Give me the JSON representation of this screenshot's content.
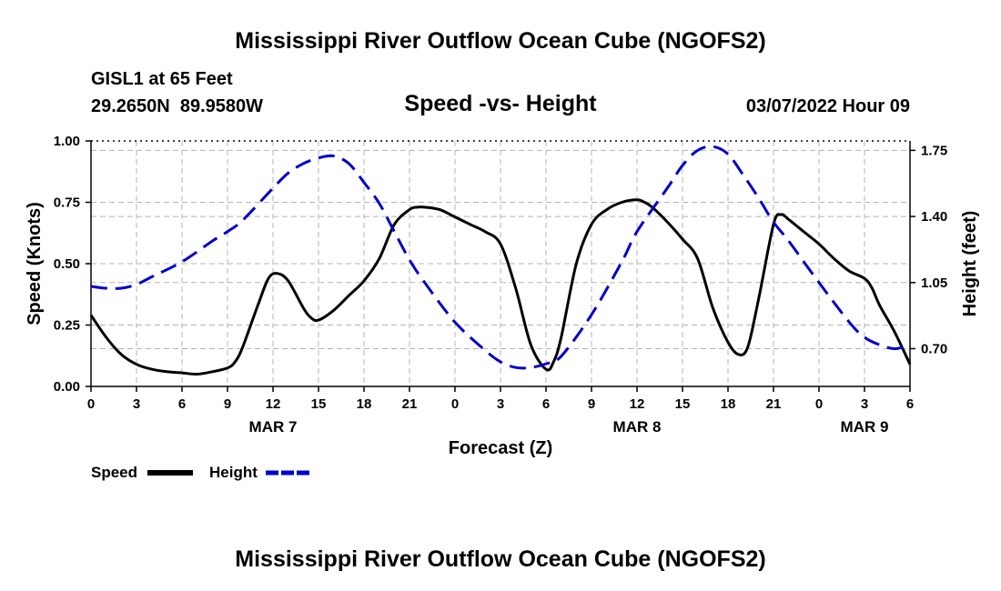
{
  "header": {
    "title": "Mississippi River Outflow Ocean Cube (NGOFS2)",
    "footer_title": "Mississippi River Outflow Ocean Cube (NGOFS2)",
    "station": "GISL1 at 65 Feet",
    "coords": "29.2650N  89.9580W",
    "subtitle": "Speed -vs- Height",
    "datetime": "03/07/2022 Hour 09"
  },
  "legend": {
    "speed_label": "Speed",
    "height_label": "Height"
  },
  "colors": {
    "speed": "#000000",
    "height": "#0000cc",
    "grid": "#b4b4b4"
  },
  "chart_data": {
    "type": "line",
    "title": "Speed -vs- Height",
    "xlabel": "Forecast (Z)",
    "ylabel": "Speed (Knots)",
    "y2label": "Height (feet)",
    "xlim": [
      0,
      54
    ],
    "ylim": [
      0,
      1.0
    ],
    "y2lim": [
      0.5,
      1.8
    ],
    "x_ticks": [
      0,
      3,
      6,
      9,
      12,
      15,
      18,
      21,
      24,
      27,
      30,
      33,
      36,
      39,
      42,
      45,
      48,
      51,
      54
    ],
    "x_tick_labels": [
      "0",
      "3",
      "6",
      "9",
      "12",
      "15",
      "18",
      "21",
      "0",
      "3",
      "6",
      "9",
      "12",
      "15",
      "18",
      "21",
      "0",
      "3",
      "6"
    ],
    "y_ticks": [
      0,
      0.25,
      0.5,
      0.75,
      1.0
    ],
    "y_tick_labels": [
      "0.00",
      "0.25",
      "0.50",
      "0.75",
      "1.00"
    ],
    "y2_ticks": [
      0.7,
      1.05,
      1.4,
      1.75
    ],
    "y2_tick_labels": [
      "0.70",
      "1.05",
      "1.40",
      "1.75"
    ],
    "date_labels": [
      {
        "x": 12,
        "label": "MAR 7"
      },
      {
        "x": 36,
        "label": "MAR 8"
      },
      {
        "x": 51,
        "label": "MAR 9"
      }
    ],
    "series": [
      {
        "name": "Speed",
        "axis": "left",
        "style": "solid",
        "x": [
          0,
          1,
          2,
          3,
          4,
          5,
          6,
          7,
          8,
          9,
          9.5,
          10,
          11,
          11.7,
          12.3,
          13,
          14,
          14.5,
          15,
          16,
          17,
          18,
          19,
          20,
          21,
          21.5,
          22,
          23,
          24,
          25,
          26,
          27,
          28,
          29,
          30,
          30.5,
          31,
          32,
          33,
          34,
          35,
          36,
          36.5,
          37,
          38,
          39,
          40,
          41,
          42,
          42.7,
          43.3,
          44,
          45,
          45.5,
          46,
          47,
          48,
          49,
          50,
          51,
          51.5,
          52,
          53,
          54
        ],
        "values": [
          0.29,
          0.2,
          0.13,
          0.09,
          0.07,
          0.06,
          0.055,
          0.05,
          0.06,
          0.075,
          0.1,
          0.16,
          0.33,
          0.44,
          0.46,
          0.43,
          0.32,
          0.28,
          0.27,
          0.31,
          0.37,
          0.43,
          0.52,
          0.66,
          0.72,
          0.73,
          0.73,
          0.72,
          0.69,
          0.66,
          0.63,
          0.58,
          0.4,
          0.17,
          0.07,
          0.1,
          0.2,
          0.5,
          0.66,
          0.72,
          0.75,
          0.76,
          0.75,
          0.73,
          0.67,
          0.6,
          0.52,
          0.32,
          0.18,
          0.13,
          0.16,
          0.35,
          0.66,
          0.7,
          0.68,
          0.63,
          0.58,
          0.52,
          0.47,
          0.44,
          0.4,
          0.33,
          0.22,
          0.09
        ]
      },
      {
        "name": "Height",
        "axis": "right",
        "style": "dashed",
        "x": [
          0,
          1,
          2,
          3,
          4,
          6,
          8,
          9,
          10,
          12,
          13,
          14,
          15,
          16,
          17,
          18,
          19,
          20,
          21,
          22,
          24,
          26,
          27,
          28,
          29,
          30,
          31,
          33,
          35,
          36,
          38,
          39,
          40,
          41,
          42,
          43,
          44,
          45,
          46,
          48,
          50,
          51,
          52,
          53,
          54
        ],
        "values": [
          1.03,
          1.02,
          1.02,
          1.04,
          1.08,
          1.16,
          1.27,
          1.32,
          1.38,
          1.55,
          1.63,
          1.68,
          1.71,
          1.72,
          1.68,
          1.58,
          1.47,
          1.32,
          1.17,
          1.05,
          0.84,
          0.69,
          0.63,
          0.6,
          0.6,
          0.62,
          0.66,
          0.88,
          1.16,
          1.32,
          1.55,
          1.67,
          1.75,
          1.77,
          1.73,
          1.62,
          1.5,
          1.37,
          1.27,
          1.05,
          0.84,
          0.76,
          0.72,
          0.7,
          0.72
        ]
      }
    ]
  }
}
